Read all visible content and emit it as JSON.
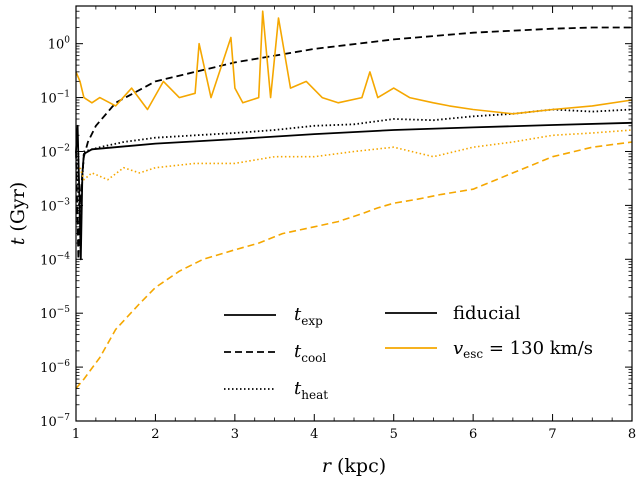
{
  "chart_data": {
    "type": "line",
    "xlabel": "r (kpc)",
    "ylabel": "t (Gyr)",
    "xlim": [
      1,
      8
    ],
    "ylim": [
      1e-07,
      5
    ],
    "yscale": "log",
    "x_ticks": [
      1,
      2,
      3,
      4,
      5,
      6,
      7,
      8
    ],
    "y_ticks": [
      {
        "value": 1e-07,
        "base": "10",
        "exp": "−7"
      },
      {
        "value": 1e-06,
        "base": "10",
        "exp": "−6"
      },
      {
        "value": 1e-05,
        "base": "10",
        "exp": "−5"
      },
      {
        "value": 0.0001,
        "base": "10",
        "exp": "−4"
      },
      {
        "value": 0.001,
        "base": "10",
        "exp": "−3"
      },
      {
        "value": 0.01,
        "base": "10",
        "exp": "−2"
      },
      {
        "value": 0.1,
        "base": "10",
        "exp": "−1"
      },
      {
        "value": 1,
        "base": "10",
        "exp": "0"
      }
    ],
    "colors": {
      "fiducial": "#000000",
      "vesc": "#f5a700"
    },
    "legend_linestyles": [
      {
        "label": "t",
        "sub": "exp",
        "dash": "solid"
      },
      {
        "label": "t",
        "sub": "cool",
        "dash": "dashed"
      },
      {
        "label": "t",
        "sub": "heat",
        "dash": "dotted"
      }
    ],
    "legend_models": [
      {
        "label": "fiducial",
        "color": "#000000"
      },
      {
        "label_v": "v",
        "label_sub": "esc",
        "label_rest": " = 130 km/s",
        "color": "#f5a700"
      }
    ],
    "series": [
      {
        "model": "fiducial",
        "quantity": "t_exp",
        "dash": "solid",
        "x": [
          1.0,
          1.02,
          1.04,
          1.06,
          1.08,
          1.1,
          1.2,
          1.5,
          2.0,
          3.0,
          4.0,
          5.0,
          6.0,
          7.0,
          8.0
        ],
        "y": [
          0.01,
          0.03,
          0.002,
          0.0001,
          0.004,
          0.009,
          0.011,
          0.012,
          0.014,
          0.017,
          0.021,
          0.025,
          0.028,
          0.031,
          0.034
        ]
      },
      {
        "model": "fiducial",
        "quantity": "t_cool",
        "dash": "dashed",
        "x": [
          1.0,
          1.03,
          1.05,
          1.08,
          1.1,
          1.15,
          1.25,
          1.5,
          2.0,
          3.0,
          4.0,
          5.0,
          6.0,
          7.0,
          7.5,
          8.0
        ],
        "y": [
          0.01,
          0.0001,
          0.001,
          0.004,
          0.008,
          0.015,
          0.03,
          0.08,
          0.2,
          0.45,
          0.8,
          1.2,
          1.6,
          1.9,
          2.0,
          2.0
        ]
      },
      {
        "model": "fiducial",
        "quantity": "t_heat",
        "dash": "dotted",
        "x": [
          1.0,
          1.05,
          1.1,
          1.3,
          1.6,
          2.0,
          2.5,
          3.0,
          3.5,
          4.0,
          4.5,
          5.0,
          5.5,
          6.0,
          6.5,
          7.0,
          7.5,
          8.0
        ],
        "y": [
          0.01,
          0.0005,
          0.01,
          0.012,
          0.015,
          0.018,
          0.02,
          0.022,
          0.025,
          0.03,
          0.032,
          0.04,
          0.038,
          0.045,
          0.05,
          0.06,
          0.055,
          0.06
        ]
      },
      {
        "model": "vesc",
        "quantity": "t_exp",
        "dash": "solid",
        "x": [
          1.0,
          1.05,
          1.1,
          1.2,
          1.3,
          1.5,
          1.7,
          1.9,
          2.1,
          2.3,
          2.5,
          2.55,
          2.7,
          2.95,
          3.0,
          3.1,
          3.3,
          3.35,
          3.45,
          3.55,
          3.7,
          3.9,
          4.1,
          4.3,
          4.6,
          4.7,
          4.8,
          5.0,
          5.2,
          5.5,
          5.7,
          6.0,
          6.5,
          7.0,
          7.5,
          8.0
        ],
        "y": [
          0.3,
          0.2,
          0.1,
          0.08,
          0.1,
          0.07,
          0.15,
          0.06,
          0.2,
          0.1,
          0.12,
          1.0,
          0.1,
          1.3,
          0.15,
          0.08,
          0.1,
          4.0,
          0.1,
          3.0,
          0.15,
          0.2,
          0.1,
          0.08,
          0.1,
          0.3,
          0.1,
          0.15,
          0.1,
          0.08,
          0.07,
          0.06,
          0.05,
          0.06,
          0.07,
          0.09
        ]
      },
      {
        "model": "vesc",
        "quantity": "t_cool",
        "dash": "dashed",
        "x": [
          1.0,
          1.1,
          1.3,
          1.5,
          1.8,
          2.0,
          2.3,
          2.6,
          3.0,
          3.3,
          3.6,
          4.0,
          4.3,
          4.6,
          4.8,
          5.0,
          5.3,
          5.6,
          6.0,
          6.5,
          7.0,
          7.5,
          8.0
        ],
        "y": [
          4e-07,
          6e-07,
          1.5e-06,
          5e-06,
          1.5e-05,
          3e-05,
          6e-05,
          0.0001,
          0.00015,
          0.0002,
          0.0003,
          0.0004,
          0.0005,
          0.0007,
          0.0009,
          0.0011,
          0.0013,
          0.0016,
          0.002,
          0.004,
          0.008,
          0.012,
          0.015
        ]
      },
      {
        "model": "vesc",
        "quantity": "t_heat",
        "dash": "dotted",
        "x": [
          1.05,
          1.1,
          1.2,
          1.4,
          1.6,
          1.8,
          2.0,
          2.5,
          3.0,
          3.5,
          4.0,
          4.5,
          5.0,
          5.5,
          6.0,
          6.5,
          7.0,
          7.5,
          8.0
        ],
        "y": [
          0.005,
          0.003,
          0.004,
          0.003,
          0.005,
          0.004,
          0.005,
          0.006,
          0.006,
          0.008,
          0.008,
          0.01,
          0.012,
          0.008,
          0.012,
          0.015,
          0.02,
          0.022,
          0.025
        ]
      }
    ]
  }
}
